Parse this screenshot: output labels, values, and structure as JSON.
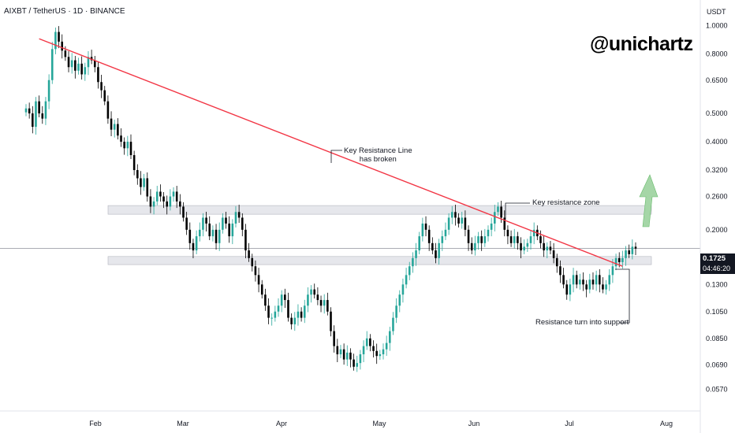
{
  "header": {
    "symbol_title": "AIXBT / TetherUS · 1D · BINANCE",
    "brand": "@unichartz",
    "currency": "USDT"
  },
  "price_badge": {
    "price": "0.1725",
    "countdown": "04:46:20"
  },
  "annotations": {
    "trendline_line1": "Key Resistance Line",
    "trendline_line2": "has broken",
    "zone": "Key resistance zone",
    "support": "Resistance turn into support"
  },
  "colors": {
    "up": "#26a69a",
    "down": "#000000",
    "trendline": "#f23645",
    "zone": "#d1d4dc",
    "arrow": "#a5d6a7"
  },
  "chart_data": {
    "type": "candlestick",
    "y_scale": "log",
    "ylim": [
      0.048,
      1.12
    ],
    "y_ticks": [
      "1.0000",
      "0.8000",
      "0.6500",
      "0.5000",
      "0.4000",
      "0.3200",
      "0.2600",
      "0.2000",
      "0.1725",
      "0.1300",
      "0.1050",
      "0.0850",
      "0.0690",
      "0.0570"
    ],
    "x_ticks": [
      "Feb",
      "Mar",
      "Apr",
      "May",
      "Jun",
      "Jul",
      "Aug"
    ],
    "grid": false,
    "close_prices": [
      0.52,
      0.5,
      0.45,
      0.55,
      0.5,
      0.48,
      0.55,
      0.65,
      0.83,
      0.95,
      0.88,
      0.82,
      0.78,
      0.72,
      0.76,
      0.7,
      0.74,
      0.68,
      0.72,
      0.78,
      0.76,
      0.72,
      0.64,
      0.6,
      0.55,
      0.48,
      0.44,
      0.46,
      0.42,
      0.4,
      0.38,
      0.4,
      0.36,
      0.32,
      0.3,
      0.28,
      0.3,
      0.26,
      0.24,
      0.25,
      0.27,
      0.26,
      0.25,
      0.24,
      0.26,
      0.27,
      0.25,
      0.24,
      0.22,
      0.2,
      0.18,
      0.17,
      0.19,
      0.2,
      0.22,
      0.21,
      0.19,
      0.2,
      0.18,
      0.2,
      0.22,
      0.21,
      0.19,
      0.21,
      0.23,
      0.22,
      0.2,
      0.17,
      0.16,
      0.15,
      0.14,
      0.13,
      0.12,
      0.11,
      0.1,
      0.1,
      0.105,
      0.11,
      0.12,
      0.115,
      0.1,
      0.095,
      0.1,
      0.105,
      0.1,
      0.11,
      0.12,
      0.125,
      0.12,
      0.115,
      0.11,
      0.115,
      0.105,
      0.09,
      0.08,
      0.075,
      0.078,
      0.072,
      0.076,
      0.072,
      0.068,
      0.07,
      0.075,
      0.08,
      0.085,
      0.08,
      0.077,
      0.074,
      0.075,
      0.078,
      0.082,
      0.09,
      0.1,
      0.11,
      0.12,
      0.13,
      0.14,
      0.15,
      0.16,
      0.17,
      0.19,
      0.21,
      0.2,
      0.18,
      0.17,
      0.16,
      0.18,
      0.19,
      0.2,
      0.22,
      0.23,
      0.22,
      0.21,
      0.22,
      0.2,
      0.18,
      0.17,
      0.18,
      0.19,
      0.18,
      0.19,
      0.2,
      0.21,
      0.23,
      0.24,
      0.22,
      0.2,
      0.19,
      0.18,
      0.19,
      0.18,
      0.17,
      0.175,
      0.18,
      0.19,
      0.2,
      0.19,
      0.18,
      0.17,
      0.175,
      0.17,
      0.16,
      0.15,
      0.14,
      0.13,
      0.12,
      0.13,
      0.14,
      0.13,
      0.135,
      0.13,
      0.125,
      0.135,
      0.13,
      0.14,
      0.13,
      0.125,
      0.13,
      0.14,
      0.15,
      0.16,
      0.155,
      0.16,
      0.17,
      0.165,
      0.175,
      0.1725
    ],
    "trendline": {
      "start_price": 0.9,
      "end_price": 0.15
    },
    "zones": [
      {
        "low": 0.226,
        "high": 0.242
      },
      {
        "low": 0.152,
        "high": 0.162
      }
    ],
    "last_price": 0.1725
  }
}
